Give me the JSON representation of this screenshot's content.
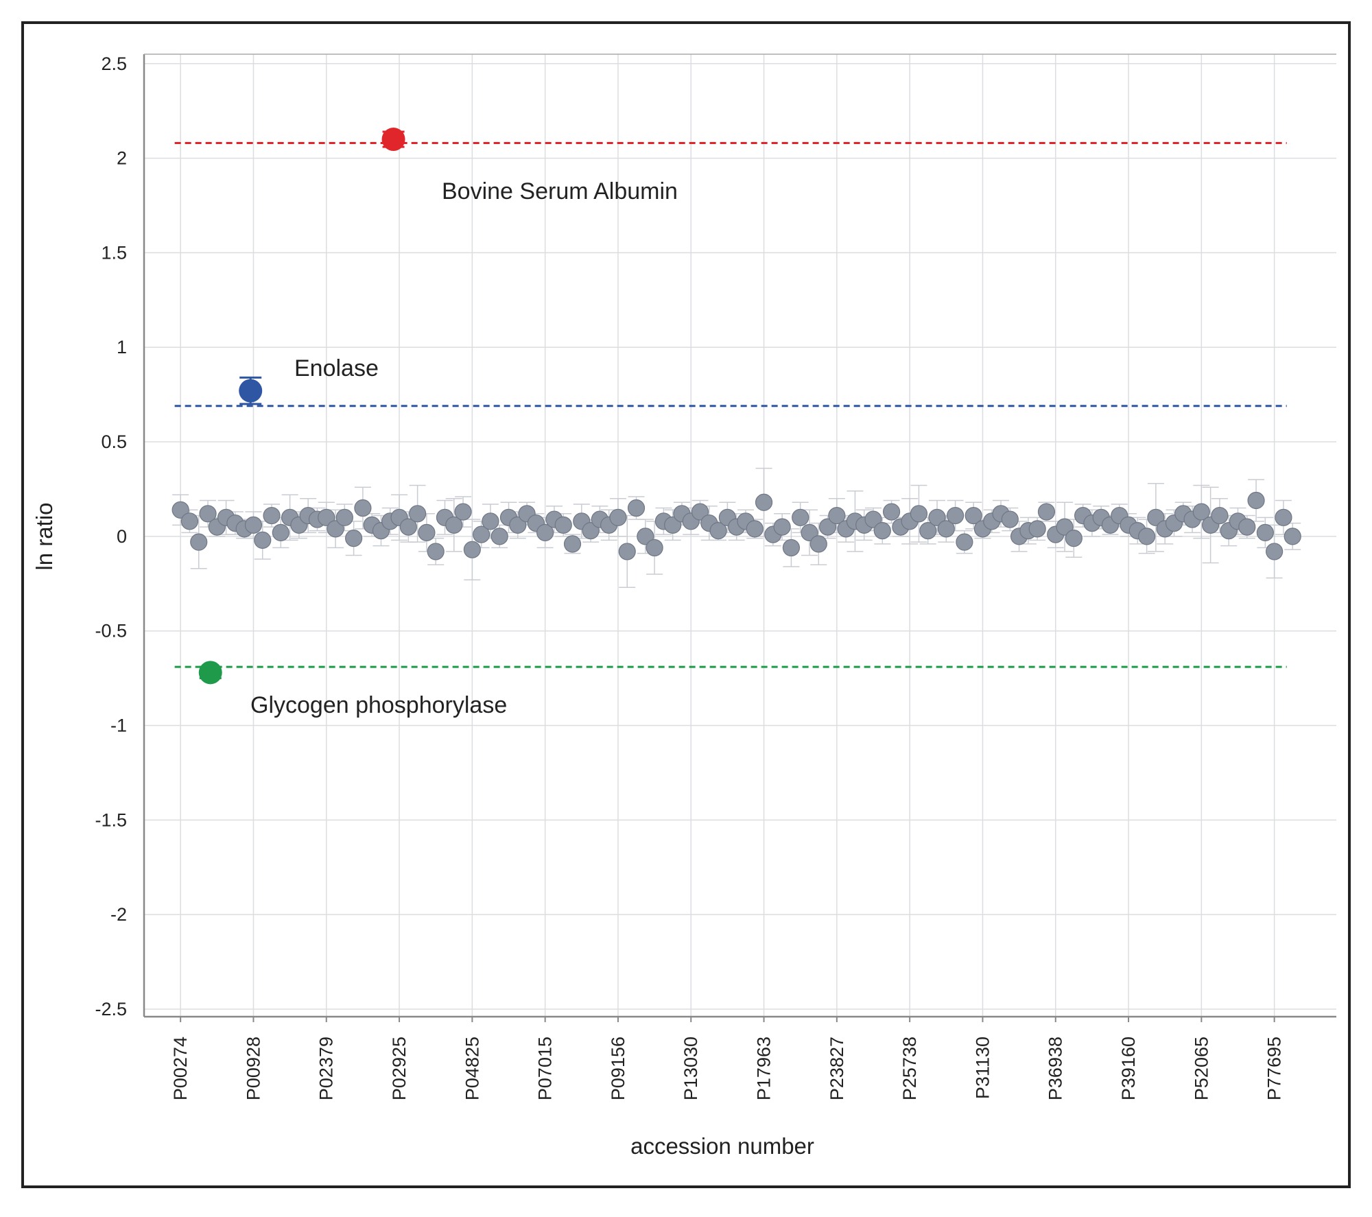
{
  "chart_data": {
    "type": "scatter",
    "xlabel": "accession number",
    "ylabel": "ln ratio",
    "xlim": [
      -0.5,
      15.85
    ],
    "ylim": [
      -2.54,
      2.55
    ],
    "xticks": [
      {
        "value": 0,
        "label": "P00274"
      },
      {
        "value": 1,
        "label": "P00928"
      },
      {
        "value": 2,
        "label": "P02379"
      },
      {
        "value": 3,
        "label": "P02925"
      },
      {
        "value": 4,
        "label": "P04825"
      },
      {
        "value": 5,
        "label": "P07015"
      },
      {
        "value": 6,
        "label": "P09156"
      },
      {
        "value": 7,
        "label": "P13030"
      },
      {
        "value": 8,
        "label": "P17963"
      },
      {
        "value": 9,
        "label": "P23827"
      },
      {
        "value": 10,
        "label": "P25738"
      },
      {
        "value": 11,
        "label": "P31130"
      },
      {
        "value": 12,
        "label": "P36938"
      },
      {
        "value": 13,
        "label": "P39160"
      },
      {
        "value": 14,
        "label": "P52065"
      },
      {
        "value": 15,
        "label": "P77695"
      }
    ],
    "yticks": [
      2.5,
      2,
      1.5,
      1,
      0.5,
      0,
      -0.5,
      -1,
      -1.5,
      -2,
      -2.5
    ],
    "grid": true,
    "points": {
      "color": "#8e96a4",
      "x": [
        0,
        0.125,
        0.25,
        0.375,
        0.5,
        0.625,
        0.75,
        0.875,
        1,
        1.125,
        1.25,
        1.375,
        1.5,
        1.625,
        1.75,
        1.875,
        2,
        2.125,
        2.25,
        2.375,
        2.5,
        2.625,
        2.75,
        2.875,
        3,
        3.125,
        3.25,
        3.375,
        3.5,
        3.625,
        3.75,
        3.875,
        4,
        4.125,
        4.25,
        4.375,
        4.5,
        4.625,
        4.75,
        4.875,
        5,
        5.125,
        5.25,
        5.375,
        5.5,
        5.625,
        5.75,
        5.875,
        6,
        6.125,
        6.25,
        6.375,
        6.5,
        6.625,
        6.75,
        6.875,
        7,
        7.125,
        7.25,
        7.375,
        7.5,
        7.625,
        7.75,
        7.875,
        8,
        8.125,
        8.25,
        8.375,
        8.5,
        8.625,
        8.75,
        8.875,
        9,
        9.125,
        9.25,
        9.375,
        9.5,
        9.625,
        9.75,
        9.875,
        10,
        10.125,
        10.25,
        10.375,
        10.5,
        10.625,
        10.75,
        10.875,
        11,
        11.125,
        11.25,
        11.375,
        11.5,
        11.625,
        11.75,
        11.875,
        12,
        12.125,
        12.25,
        12.375,
        12.5,
        12.625,
        12.75,
        12.875,
        13,
        13.125,
        13.25,
        13.375,
        13.5,
        13.625,
        13.75,
        13.875,
        14,
        14.125,
        14.25,
        14.375,
        14.5,
        14.625,
        14.75,
        14.875,
        15,
        15.125,
        15.25
      ],
      "values": [
        0.14,
        0.08,
        -0.03,
        0.12,
        0.05,
        0.1,
        0.07,
        0.04,
        0.06,
        -0.02,
        0.11,
        0.02,
        0.1,
        0.06,
        0.11,
        0.09,
        0.1,
        0.04,
        0.1,
        -0.01,
        0.15,
        0.06,
        0.03,
        0.08,
        0.1,
        0.05,
        0.12,
        0.02,
        -0.08,
        0.1,
        0.06,
        0.13,
        -0.07,
        0.01,
        0.08,
        0.0,
        0.1,
        0.06,
        0.12,
        0.07,
        0.02,
        0.09,
        0.06,
        -0.04,
        0.08,
        0.03,
        0.09,
        0.06,
        0.1,
        -0.08,
        0.15,
        0.0,
        -0.06,
        0.08,
        0.06,
        0.12,
        0.08,
        0.13,
        0.07,
        0.03,
        0.1,
        0.05,
        0.08,
        0.04,
        0.18,
        0.01,
        0.05,
        -0.06,
        0.1,
        0.02,
        -0.04,
        0.05,
        0.11,
        0.04,
        0.08,
        0.06,
        0.09,
        0.03,
        0.13,
        0.05,
        0.08,
        0.12,
        0.03,
        0.1,
        0.04,
        0.11,
        -0.03,
        0.11,
        0.04,
        0.08,
        0.12,
        0.09,
        0.0,
        0.03,
        0.04,
        0.13,
        0.01,
        0.05,
        -0.01,
        0.11,
        0.07,
        0.1,
        0.06,
        0.11,
        0.06,
        0.03,
        0.0,
        0.1,
        0.04,
        0.07,
        0.12,
        0.09,
        0.13,
        0.06,
        0.11,
        0.03,
        0.08,
        0.05,
        0.19,
        0.02,
        -0.08,
        0.1,
        0.0
      ],
      "errors": [
        0.08,
        0.06,
        0.14,
        0.07,
        0.05,
        0.09,
        0.06,
        0.05,
        0.07,
        0.1,
        0.06,
        0.08,
        0.12,
        0.07,
        0.09,
        0.06,
        0.08,
        0.1,
        0.07,
        0.09,
        0.11,
        0.06,
        0.08,
        0.07,
        0.12,
        0.08,
        0.15,
        0.1,
        0.07,
        0.09,
        0.14,
        0.08,
        0.16,
        0.07,
        0.09,
        0.06,
        0.08,
        0.07,
        0.06,
        0.05,
        0.08,
        0.07,
        0.06,
        0.05,
        0.09,
        0.06,
        0.07,
        0.08,
        0.1,
        0.19,
        0.06,
        0.09,
        0.14,
        0.07,
        0.08,
        0.06,
        0.07,
        0.06,
        0.09,
        0.05,
        0.08,
        0.07,
        0.06,
        0.05,
        0.18,
        0.06,
        0.07,
        0.1,
        0.08,
        0.12,
        0.11,
        0.06,
        0.09,
        0.07,
        0.16,
        0.08,
        0.06,
        0.07,
        0.06,
        0.05,
        0.12,
        0.15,
        0.07,
        0.09,
        0.07,
        0.08,
        0.06,
        0.07,
        0.05,
        0.06,
        0.07,
        0.06,
        0.08,
        0.07,
        0.06,
        0.05,
        0.07,
        0.13,
        0.1,
        0.06,
        0.07,
        0.06,
        0.05,
        0.06,
        0.06,
        0.07,
        0.09,
        0.18,
        0.08,
        0.07,
        0.06,
        0.07,
        0.14,
        0.2,
        0.09,
        0.08,
        0.07,
        0.06,
        0.11,
        0.08,
        0.14,
        0.09,
        0.07
      ]
    },
    "highlights": [
      {
        "label": "Bovine Serum Albumin",
        "color": "#e0262a",
        "x": 2.92,
        "value": 2.1,
        "error": 0.04,
        "ref": 2.08
      },
      {
        "label": "Enolase",
        "color": "#2e56a3",
        "x": 0.96,
        "value": 0.77,
        "error": 0.07,
        "ref": 0.69
      },
      {
        "label": "Glycogen phosphorylase",
        "color": "#1f9a4a",
        "x": 0.41,
        "value": -0.72,
        "error": 0.03,
        "ref": -0.69
      }
    ],
    "ref_span": [
      -0.08,
      15.17
    ]
  }
}
